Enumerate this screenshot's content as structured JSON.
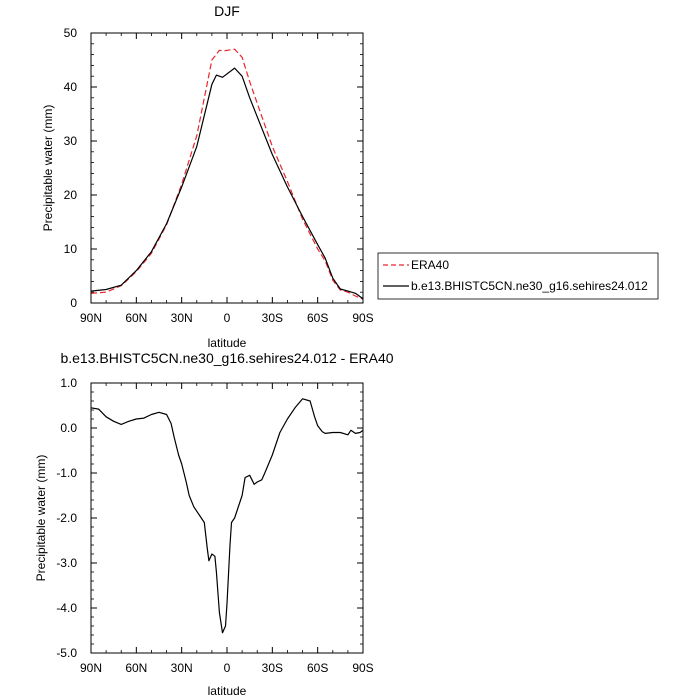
{
  "chart_data": [
    {
      "type": "line",
      "title": "DJF",
      "xlabel": "latitude",
      "ylabel": "Precipitable water (mm)",
      "xlim": [
        90,
        -90
      ],
      "ylim": [
        0,
        50
      ],
      "xticks": [
        90,
        60,
        30,
        0,
        -30,
        -60,
        -90
      ],
      "xtick_labels": [
        "90N",
        "60N",
        "30N",
        "0",
        "30S",
        "60S",
        "90S"
      ],
      "yticks": [
        0,
        10,
        20,
        30,
        40,
        50
      ],
      "ytick_labels": [
        "0",
        "10",
        "20",
        "30",
        "40",
        "50"
      ],
      "grid": false,
      "legend": "right",
      "series": [
        {
          "name": "ERA40",
          "color": "#e8262e",
          "dash": "dashed",
          "x": [
            90,
            80,
            70,
            60,
            50,
            40,
            30,
            20,
            10,
            5,
            2,
            -5,
            -10,
            -15,
            -20,
            -30,
            -40,
            -50,
            -60,
            -65,
            -70,
            -75,
            -80,
            -85,
            -90
          ],
          "y": [
            1.8,
            2.0,
            3.2,
            5.8,
            9.2,
            14.5,
            22.0,
            31.0,
            45.0,
            46.8,
            46.7,
            47.0,
            45.5,
            41.0,
            37.0,
            29.0,
            22.5,
            15.5,
            10.0,
            7.8,
            4.2,
            2.4,
            2.0,
            1.3,
            0.7
          ]
        },
        {
          "name": "b.e13.BHISTC5CN.ne30_g16.sehires24.012",
          "color": "#000000",
          "dash": "solid",
          "x": [
            90,
            80,
            70,
            60,
            50,
            40,
            30,
            20,
            10,
            7,
            3,
            -5,
            -10,
            -15,
            -20,
            -30,
            -40,
            -50,
            -60,
            -65,
            -70,
            -75,
            -80,
            -85,
            -90
          ],
          "y": [
            2.2,
            2.5,
            3.3,
            6.0,
            9.5,
            14.7,
            21.5,
            29.0,
            40.5,
            42.2,
            41.8,
            43.5,
            42.0,
            38.0,
            34.5,
            27.5,
            21.5,
            16.0,
            10.8,
            8.3,
            4.6,
            2.6,
            2.2,
            1.8,
            0.8
          ]
        }
      ]
    },
    {
      "type": "line",
      "title": "b.e13.BHISTC5CN.ne30_g16.sehires24.012 - ERA40",
      "xlabel": "latitude",
      "ylabel": "Precipitable water (mm)",
      "xlim": [
        90,
        -90
      ],
      "ylim": [
        -5,
        1
      ],
      "xticks": [
        90,
        60,
        30,
        0,
        -30,
        -60,
        -90
      ],
      "xtick_labels": [
        "90N",
        "60N",
        "30N",
        "0",
        "30S",
        "60S",
        "90S"
      ],
      "yticks": [
        1,
        0,
        -1,
        -2,
        -3,
        -4,
        -5
      ],
      "ytick_labels": [
        "1.0",
        "0.0",
        "-1.0",
        "-2.0",
        "-3.0",
        "-4.0",
        "-5.0"
      ],
      "grid": false,
      "series": [
        {
          "color": "#000000",
          "x": [
            90,
            85,
            80,
            75,
            70,
            65,
            60,
            55,
            50,
            45,
            40,
            37,
            35,
            32,
            30,
            27,
            25,
            22,
            20,
            17,
            15,
            13,
            12,
            10,
            8,
            7,
            5,
            3,
            1,
            0,
            -2,
            -3,
            -5,
            -7,
            -10,
            -12,
            -15,
            -18,
            -20,
            -23,
            -25,
            -30,
            -35,
            -40,
            -45,
            -50,
            -55,
            -58,
            -60,
            -63,
            -65,
            -70,
            -75,
            -80,
            -82,
            -85,
            -88,
            -90
          ],
          "y": [
            0.45,
            0.42,
            0.25,
            0.15,
            0.08,
            0.15,
            0.2,
            0.22,
            0.3,
            0.35,
            0.3,
            0.1,
            -0.2,
            -0.6,
            -0.8,
            -1.2,
            -1.5,
            -1.75,
            -1.85,
            -2.0,
            -2.1,
            -2.7,
            -2.95,
            -2.8,
            -2.85,
            -3.2,
            -4.1,
            -4.55,
            -4.4,
            -3.9,
            -2.6,
            -2.1,
            -2.0,
            -1.8,
            -1.5,
            -1.1,
            -1.05,
            -1.25,
            -1.2,
            -1.15,
            -1.0,
            -0.6,
            -0.1,
            0.2,
            0.45,
            0.65,
            0.6,
            0.25,
            0.05,
            -0.08,
            -0.12,
            -0.1,
            -0.1,
            -0.15,
            -0.05,
            -0.12,
            -0.1,
            -0.05
          ]
        }
      ]
    }
  ]
}
